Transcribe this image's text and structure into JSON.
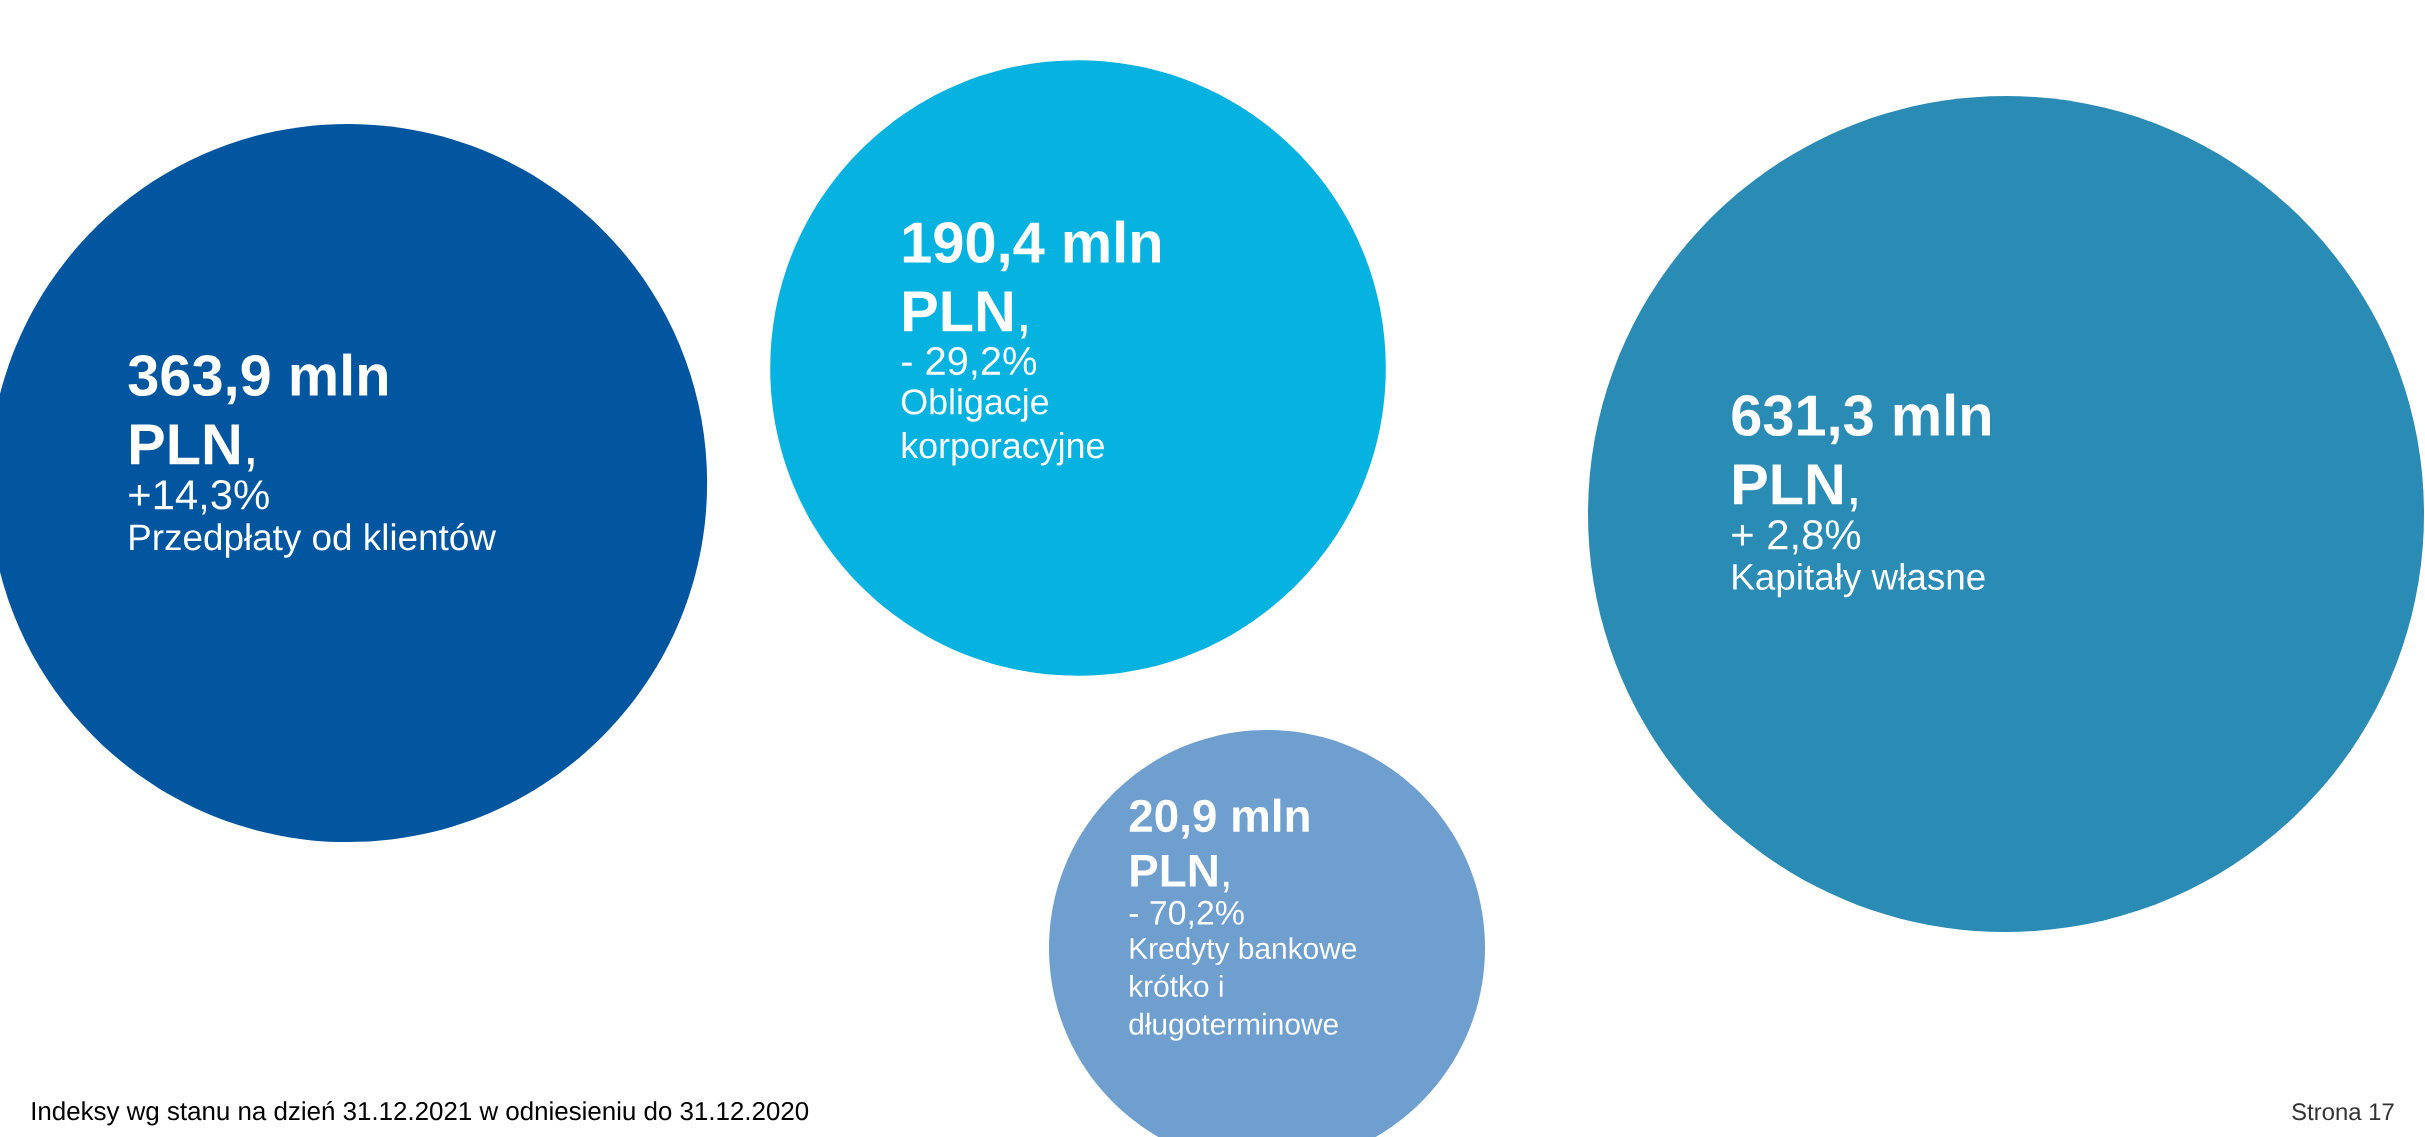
{
  "chart_data": {
    "type": "other",
    "categories": [
      "Przedpłaty od klientów",
      "Obligacje korporacyjne",
      "Kapitały własne",
      "Kredyty bankowe krótko i długoterminowe"
    ],
    "series": [
      {
        "values": [
          363.9,
          190.4,
          631.3,
          20.9
        ],
        "value_labels": [
          "**363,9 mln PLN**,",
          "**190,4 mln PLN**,",
          "**631,3 mln PLN**,",
          "**20,9 mln PLN**,"
        ],
        "colors": [
          "#0256a0",
          "#05b2e0",
          "#2a8cb4",
          "#6e9fcf"
        ]
      }
    ],
    "annotations": [
      {
        "text": "+14,3%",
        "x": "Przedpłaty od klientów"
      },
      {
        "text": "- 29,2%",
        "x": "Obligacje korporacyjne"
      },
      {
        "text": "+ 2,8%",
        "x": "Kapitały własne"
      },
      {
        "text": "- 70,2%",
        "x": "Kredyty bankowe krótko i długoterminowe"
      },
      "Indeksy wg stanu na dzień 31.12.2021 w odniesieniu do 31.12.2020",
      "Strona 17"
    ]
  }
}
